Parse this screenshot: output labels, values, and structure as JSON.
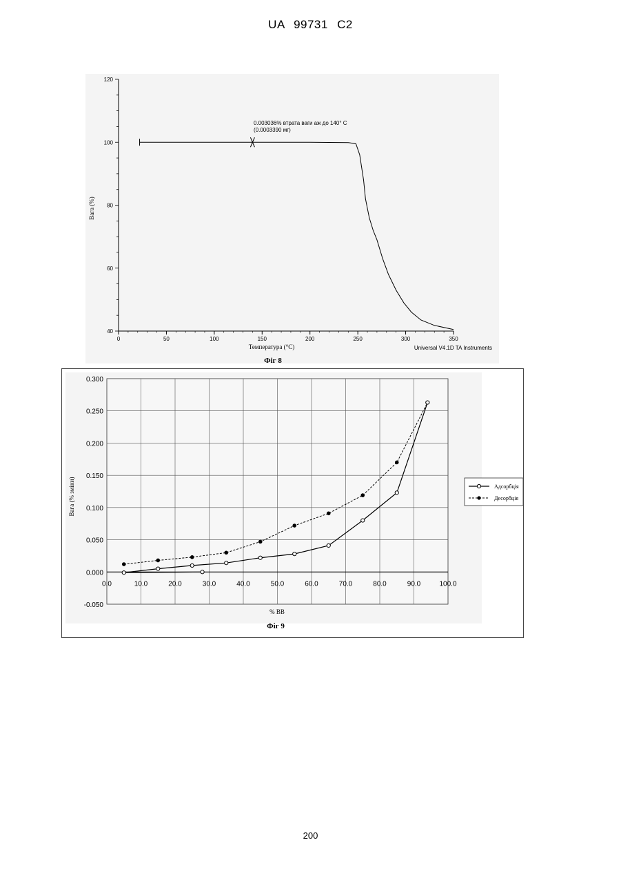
{
  "header": "UA   99731   C2",
  "page_number": "200",
  "figures": [
    {
      "caption": "Фіг 8",
      "chart_data": {
        "type": "line",
        "xlabel": "Температура (°C)",
        "ylabel": "Вага (%)",
        "xlim": [
          0,
          350
        ],
        "ylim": [
          40,
          120
        ],
        "x_ticks": [
          "0",
          "50",
          "100",
          "150",
          "200",
          "250",
          "300",
          "350"
        ],
        "y_ticks": [
          "40",
          "60",
          "80",
          "100",
          "120"
        ],
        "annotation_line1": "0.003036% втрата ваги аж до 140° C",
        "annotation_line2": "(0.0003390 мг)",
        "instrument_label": "Universal V4.1D TA Instruments",
        "grid": false,
        "series": [
          {
            "x": [
              22,
              140,
              200,
              240,
              248,
              252,
              256,
              258,
              262,
              266,
              270,
              276,
              282,
              290,
              298,
              306,
              316,
              330,
              350
            ],
            "y": [
              100,
              100,
              100,
              99.9,
              99.5,
              96,
              88,
              82,
              76,
              72,
              69,
              63,
              58,
              53,
              49,
              46,
              43.5,
              41.8,
              40.5
            ]
          }
        ]
      }
    },
    {
      "caption": "Фіг 9",
      "chart_data": {
        "type": "line",
        "xlabel": "% ВВ",
        "ylabel": "Вага (% зміни)",
        "xlim": [
          0,
          100
        ],
        "ylim": [
          -0.05,
          0.3
        ],
        "x_ticks": [
          "0.0",
          "10.0",
          "20.0",
          "30.0",
          "40.0",
          "50.0",
          "60.0",
          "70.0",
          "80.0",
          "90.0",
          "100.0"
        ],
        "y_ticks": [
          "-0.050",
          "0.000",
          "0.050",
          "0.100",
          "0.150",
          "0.200",
          "0.250",
          "0.300"
        ],
        "grid": true,
        "legend_position": "right",
        "series": [
          {
            "name": "Адсорбція",
            "style": "solid-open-circles",
            "x": [
              28,
              5,
              15,
              25,
              35,
              45,
              55,
              65,
              75,
              85,
              94
            ],
            "y": [
              0.0,
              -0.001,
              0.005,
              0.01,
              0.014,
              0.022,
              0.028,
              0.041,
              0.08,
              0.123,
              0.263
            ]
          },
          {
            "name": "Десорбція",
            "style": "dashed-filled-circles",
            "x": [
              5,
              15,
              25,
              35,
              45,
              55,
              65,
              75,
              85,
              94
            ],
            "y": [
              0.012,
              0.018,
              0.023,
              0.03,
              0.047,
              0.072,
              0.091,
              0.119,
              0.17,
              0.263
            ]
          }
        ]
      }
    }
  ]
}
